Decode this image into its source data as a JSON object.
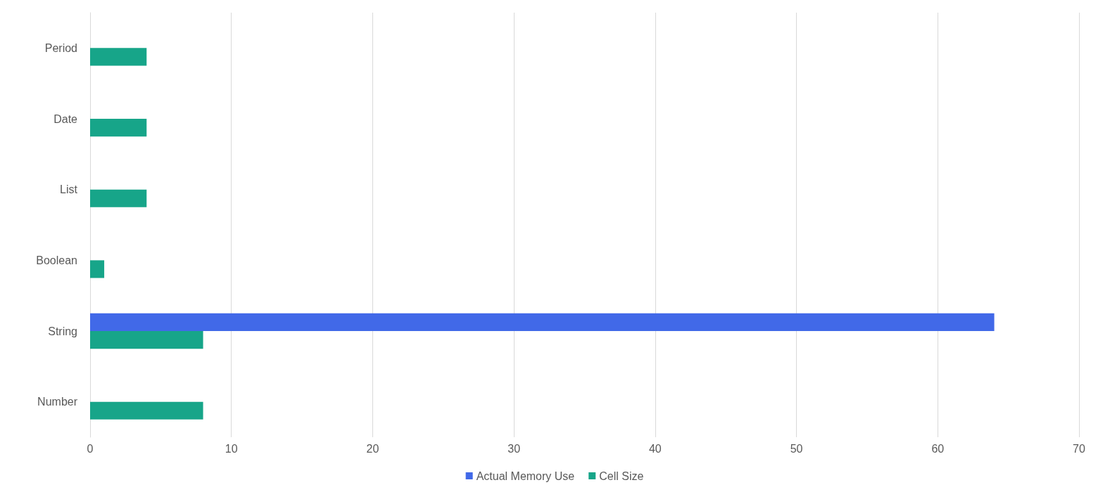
{
  "chart_data": {
    "type": "bar",
    "orientation": "horizontal",
    "categories": [
      "Period",
      "Date",
      "List",
      "Boolean",
      "String",
      "Number"
    ],
    "series": [
      {
        "name": "Actual Memory Use",
        "color": "#4169e8",
        "values": [
          null,
          null,
          null,
          null,
          64,
          null
        ]
      },
      {
        "name": "Cell Size",
        "color": "#17a589",
        "values": [
          4,
          4,
          4,
          1,
          8,
          8
        ]
      }
    ],
    "xlim": [
      0,
      70
    ],
    "xticks": [
      0,
      10,
      20,
      30,
      40,
      50,
      60,
      70
    ],
    "grid": "x",
    "legend": "bottom"
  }
}
